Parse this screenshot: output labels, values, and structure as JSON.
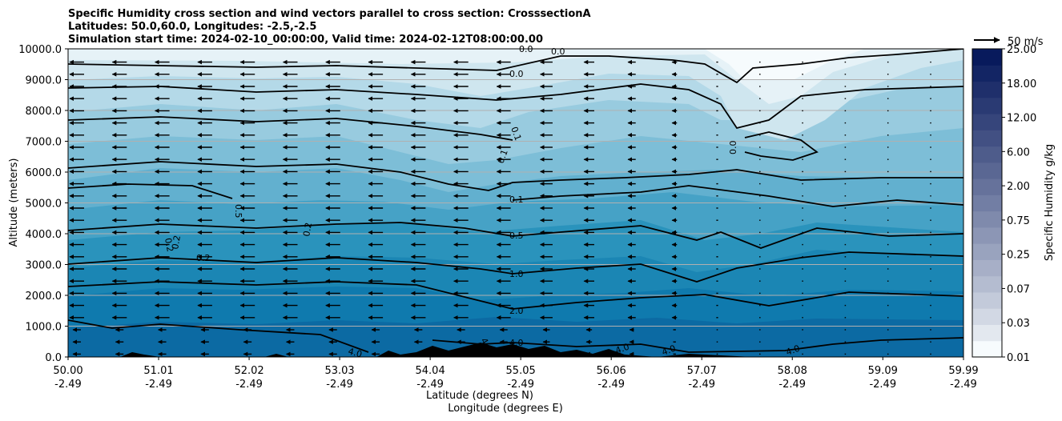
{
  "chart_data": {
    "type": "contourf",
    "title_lines": [
      "Specific Humidity cross section and wind vectors parallel to cross section: CrosssectionA",
      "Latitudes: 50.0,60.0, Longitudes: -2.5,-2.5",
      "Simulation start time: 2024-02-10_00:00:00, Valid time: 2024-02-12T08:00:00.00"
    ],
    "ylabel": "Altitude (meters)",
    "xlabel_lines": [
      "Latitude (degrees N)",
      "Longitude (degrees E)"
    ],
    "ylim": [
      0,
      10000
    ],
    "yticks": [
      "0.0",
      "1000.0",
      "2000.0",
      "3000.0",
      "4000.0",
      "5000.0",
      "6000.0",
      "7000.0",
      "8000.0",
      "9000.0",
      "10000.0"
    ],
    "xrange_lat": [
      50.0,
      59.99
    ],
    "xticks": [
      {
        "lat": "50.00",
        "lon": "-2.49"
      },
      {
        "lat": "51.01",
        "lon": "-2.49"
      },
      {
        "lat": "52.02",
        "lon": "-2.49"
      },
      {
        "lat": "53.03",
        "lon": "-2.49"
      },
      {
        "lat": "54.04",
        "lon": "-2.49"
      },
      {
        "lat": "55.05",
        "lon": "-2.49"
      },
      {
        "lat": "56.06",
        "lon": "-2.49"
      },
      {
        "lat": "57.07",
        "lon": "-2.49"
      },
      {
        "lat": "58.08",
        "lon": "-2.49"
      },
      {
        "lat": "59.09",
        "lon": "-2.49"
      },
      {
        "lat": "59.99",
        "lon": "-2.49"
      }
    ],
    "colorbar": {
      "label": "Specific Humidity g/kg",
      "ticks": [
        "0.01",
        "0.03",
        "0.07",
        "0.25",
        "0.75",
        "2.00",
        "6.00",
        "12.00",
        "18.00",
        "25.00"
      ],
      "levels": 19,
      "color_low": "#f7fbfd",
      "color_high": "#081a5c"
    },
    "contour_labels": [
      "0.0",
      "0.0",
      "0.0",
      "0.1",
      "0.1",
      "0.1",
      "0.0",
      "0.5",
      "0.5",
      "0.2",
      "0.2",
      "0.2",
      "0.2",
      "1.0",
      "2.0",
      "4.0",
      "4.0",
      "4.0",
      "4.0",
      "4.0",
      "4.0"
    ],
    "quiver_key": "50 m/s",
    "wind_direction": "southward (toward lower latitude) in west, near calm in north-east"
  }
}
